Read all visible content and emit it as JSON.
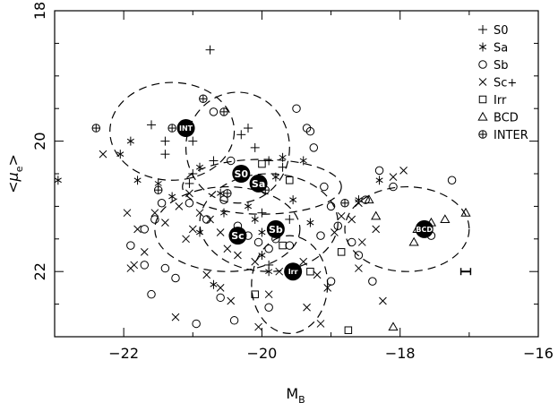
{
  "chart_data": {
    "type": "scatter",
    "xlabel": "M",
    "xlabel_sub": "B",
    "ylabel_open": "<",
    "ylabel_symbol": "μ",
    "ylabel_sub": "e",
    "ylabel_close": ">",
    "xlim": [
      -23,
      -16
    ],
    "ylim": [
      23,
      18
    ],
    "y_inverted": true,
    "xticks": [
      -22,
      -20,
      -18,
      -16
    ],
    "xtick_labels": [
      "−22",
      "−20",
      "−18",
      "−16"
    ],
    "yticks": [
      18,
      20,
      22
    ],
    "ytick_labels": [
      "18",
      "20",
      "22"
    ],
    "grid": false,
    "legend_position": "top-right",
    "series": [
      {
        "name": "S0",
        "marker": "plus",
        "points": [
          [
            -20.75,
            18.6
          ],
          [
            -21.6,
            19.75
          ],
          [
            -21.0,
            20.0
          ],
          [
            -21.4,
            20.0
          ],
          [
            -21.4,
            20.2
          ],
          [
            -21.0,
            20.5
          ],
          [
            -20.7,
            20.3
          ],
          [
            -20.3,
            19.9
          ],
          [
            -20.1,
            20.1
          ],
          [
            -19.9,
            20.3
          ],
          [
            -20.2,
            19.8
          ],
          [
            -19.7,
            20.4
          ],
          [
            -21.05,
            20.65
          ],
          [
            -20.0,
            21.1
          ],
          [
            -19.6,
            21.2
          ],
          [
            -20.4,
            21.5
          ],
          [
            -19.9,
            21.9
          ]
        ]
      },
      {
        "name": "Sa",
        "marker": "asterisk",
        "points": [
          [
            -22.95,
            20.6
          ],
          [
            -21.9,
            20.0
          ],
          [
            -22.05,
            20.2
          ],
          [
            -21.8,
            20.6
          ],
          [
            -21.5,
            20.65
          ],
          [
            -21.3,
            20.85
          ],
          [
            -20.9,
            20.4
          ],
          [
            -20.6,
            20.8
          ],
          [
            -20.55,
            21.1
          ],
          [
            -20.9,
            21.4
          ],
          [
            -20.2,
            21.0
          ],
          [
            -20.1,
            21.2
          ],
          [
            -20.0,
            21.4
          ],
          [
            -19.8,
            20.55
          ],
          [
            -19.55,
            20.9
          ],
          [
            -19.4,
            20.3
          ],
          [
            -19.3,
            21.25
          ],
          [
            -20.0,
            21.75
          ],
          [
            -19.9,
            22.0
          ],
          [
            -18.6,
            20.9
          ],
          [
            -18.3,
            20.6
          ],
          [
            -20.7,
            22.2
          ],
          [
            -19.7,
            20.25
          ]
        ]
      },
      {
        "name": "Sb",
        "marker": "circle",
        "points": [
          [
            -21.7,
            21.35
          ],
          [
            -21.9,
            21.6
          ],
          [
            -21.7,
            21.9
          ],
          [
            -21.6,
            22.35
          ],
          [
            -21.25,
            22.1
          ],
          [
            -21.4,
            21.95
          ],
          [
            -21.45,
            20.95
          ],
          [
            -21.05,
            20.95
          ],
          [
            -20.8,
            21.2
          ],
          [
            -20.55,
            20.9
          ],
          [
            -20.7,
            19.55
          ],
          [
            -20.45,
            20.3
          ],
          [
            -20.35,
            21.3
          ],
          [
            -20.2,
            21.45
          ],
          [
            -20.05,
            21.55
          ],
          [
            -19.9,
            21.65
          ],
          [
            -19.8,
            21.5
          ],
          [
            -19.6,
            21.6
          ],
          [
            -19.5,
            19.5
          ],
          [
            -19.35,
            19.8
          ],
          [
            -19.25,
            20.1
          ],
          [
            -19.1,
            20.7
          ],
          [
            -19.0,
            21.0
          ],
          [
            -18.9,
            21.3
          ],
          [
            -18.7,
            21.55
          ],
          [
            -18.6,
            21.75
          ],
          [
            -18.5,
            20.9
          ],
          [
            -18.4,
            22.15
          ],
          [
            -18.3,
            20.45
          ],
          [
            -18.1,
            20.7
          ],
          [
            -19.9,
            22.55
          ],
          [
            -20.6,
            22.4
          ],
          [
            -20.4,
            22.75
          ],
          [
            -20.95,
            22.8
          ],
          [
            -19.0,
            22.15
          ],
          [
            -19.3,
            19.85
          ],
          [
            -17.25,
            20.6
          ],
          [
            -17.55,
            21.45
          ],
          [
            -21.55,
            21.2
          ],
          [
            -19.15,
            21.45
          ]
        ]
      },
      {
        "name": "Sc+",
        "marker": "cross",
        "points": [
          [
            -22.3,
            20.2
          ],
          [
            -21.95,
            21.1
          ],
          [
            -21.8,
            21.35
          ],
          [
            -21.85,
            21.9
          ],
          [
            -21.9,
            21.95
          ],
          [
            -21.7,
            21.7
          ],
          [
            -21.55,
            21.1
          ],
          [
            -21.4,
            21.25
          ],
          [
            -21.2,
            21.0
          ],
          [
            -21.1,
            21.5
          ],
          [
            -21.0,
            21.35
          ],
          [
            -20.9,
            21.1
          ],
          [
            -20.75,
            21.2
          ],
          [
            -20.6,
            21.4
          ],
          [
            -20.5,
            21.65
          ],
          [
            -20.35,
            21.75
          ],
          [
            -20.8,
            22.05
          ],
          [
            -20.6,
            22.25
          ],
          [
            -20.45,
            22.45
          ],
          [
            -21.25,
            22.7
          ],
          [
            -20.1,
            21.85
          ],
          [
            -19.9,
            22.35
          ],
          [
            -19.75,
            22.0
          ],
          [
            -19.4,
            21.85
          ],
          [
            -19.2,
            22.05
          ],
          [
            -19.05,
            22.25
          ],
          [
            -19.35,
            22.55
          ],
          [
            -18.95,
            21.4
          ],
          [
            -18.85,
            21.15
          ],
          [
            -18.7,
            21.2
          ],
          [
            -18.6,
            20.95
          ],
          [
            -18.55,
            21.55
          ],
          [
            -18.35,
            21.35
          ],
          [
            -18.1,
            20.55
          ],
          [
            -17.95,
            20.45
          ],
          [
            -18.6,
            21.95
          ],
          [
            -18.25,
            22.45
          ],
          [
            -19.15,
            22.8
          ],
          [
            -20.05,
            22.85
          ],
          [
            -21.05,
            20.8
          ]
        ]
      },
      {
        "name": "Irr",
        "marker": "square",
        "points": [
          [
            -20.0,
            20.35
          ],
          [
            -19.6,
            20.6
          ],
          [
            -19.7,
            21.6
          ],
          [
            -19.3,
            22.0
          ],
          [
            -18.85,
            21.7
          ],
          [
            -20.1,
            22.35
          ],
          [
            -18.75,
            22.9
          ]
        ]
      },
      {
        "name": "BCD",
        "marker": "triangle",
        "points": [
          [
            -18.45,
            20.9
          ],
          [
            -18.35,
            21.15
          ],
          [
            -17.75,
            21.35
          ],
          [
            -17.55,
            21.25
          ],
          [
            -17.35,
            21.2
          ],
          [
            -17.05,
            21.1
          ],
          [
            -17.8,
            21.55
          ],
          [
            -18.1,
            22.85
          ]
        ]
      },
      {
        "name": "INTER",
        "marker": "circleplus",
        "points": [
          [
            -22.4,
            19.8
          ],
          [
            -21.3,
            19.8
          ],
          [
            -20.85,
            19.35
          ],
          [
            -20.55,
            19.55
          ],
          [
            -21.5,
            20.75
          ],
          [
            -20.5,
            20.8
          ],
          [
            -19.95,
            20.75
          ],
          [
            -18.8,
            20.95
          ]
        ]
      }
    ],
    "centroids": [
      {
        "label": "INT",
        "x": -21.1,
        "y": 19.8
      },
      {
        "label": "S0",
        "x": -20.3,
        "y": 20.5
      },
      {
        "label": "Sa",
        "x": -20.05,
        "y": 20.65
      },
      {
        "label": "Sb",
        "x": -19.8,
        "y": 21.35
      },
      {
        "label": "Sc",
        "x": -20.35,
        "y": 21.45
      },
      {
        "label": "Irr",
        "x": -19.55,
        "y": 22.0
      },
      {
        "label": "BCD",
        "x": -17.65,
        "y": 21.35
      }
    ],
    "ellipses": [
      {
        "group": "INT",
        "cx": -21.3,
        "cy": 19.85,
        "rx": 0.9,
        "ry": 0.75
      },
      {
        "group": "S0",
        "cx": -20.35,
        "cy": 20.1,
        "rx": 0.75,
        "ry": 0.85
      },
      {
        "group": "Sa",
        "cx": -20.0,
        "cy": 20.7,
        "rx": 1.15,
        "ry": 0.42
      },
      {
        "group": "Sb",
        "cx": -19.9,
        "cy": 21.25,
        "rx": 1.0,
        "ry": 0.75
      },
      {
        "group": "Sc",
        "cx": -20.5,
        "cy": 21.35,
        "rx": 1.05,
        "ry": 0.65
      },
      {
        "group": "Irr",
        "cx": -19.6,
        "cy": 22.2,
        "rx": 0.55,
        "ry": 0.75
      },
      {
        "group": "BCD",
        "cx": -17.9,
        "cy": 21.35,
        "rx": 0.9,
        "ry": 0.65
      }
    ],
    "error_bar": {
      "x": -17.05,
      "y": 22.0,
      "xerr": 0.07
    }
  }
}
